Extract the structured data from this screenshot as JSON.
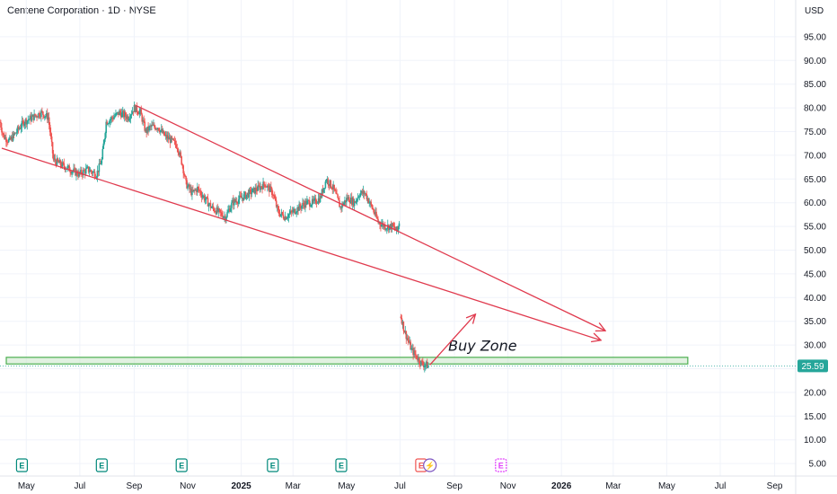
{
  "header": {
    "symbol_title": "Centene Corporation · 1D · NYSE",
    "currency": "USD"
  },
  "colors": {
    "up": "#26a69a",
    "down": "#ef5350",
    "trendline": "#e03a4e",
    "zone_border": "#4caf50",
    "zone_fill": "#c8e6c9",
    "price_tag": "#26a69a",
    "earnings": "#00897b",
    "earnings_upcoming": "#e040fb",
    "dividend": "#7e57c2"
  },
  "chart_data": {
    "type": "candlestick",
    "ylim": [
      0,
      100
    ],
    "y_ticks": [
      "95.00",
      "90.00",
      "85.00",
      "80.00",
      "75.00",
      "70.00",
      "65.00",
      "60.00",
      "55.00",
      "50.00",
      "45.00",
      "40.00",
      "35.00",
      "30.00",
      "25.00",
      "20.00",
      "15.00",
      "10.00",
      "5.00"
    ],
    "x_start": "2024-04-01",
    "x_end": "2026-09-25",
    "x_ticks": [
      {
        "label": "May",
        "date": "2024-05-01"
      },
      {
        "label": "Jul",
        "date": "2024-07-01"
      },
      {
        "label": "Sep",
        "date": "2024-09-01"
      },
      {
        "label": "Nov",
        "date": "2024-11-01"
      },
      {
        "label": "2025",
        "date": "2025-01-01",
        "bold": true
      },
      {
        "label": "Mar",
        "date": "2025-03-01"
      },
      {
        "label": "May",
        "date": "2025-05-01"
      },
      {
        "label": "Jul",
        "date": "2025-07-01"
      },
      {
        "label": "Sep",
        "date": "2025-09-01"
      },
      {
        "label": "Nov",
        "date": "2025-11-01"
      },
      {
        "label": "2026",
        "date": "2026-01-01",
        "bold": true
      },
      {
        "label": "Mar",
        "date": "2026-03-01"
      },
      {
        "label": "May",
        "date": "2026-05-01"
      },
      {
        "label": "Jul",
        "date": "2026-07-01"
      },
      {
        "label": "Sep",
        "date": "2026-09-01"
      }
    ],
    "price_path": [
      [
        "2024-04-01",
        77
      ],
      [
        "2024-04-05",
        74
      ],
      [
        "2024-04-12",
        73
      ],
      [
        "2024-04-20",
        75
      ],
      [
        "2024-04-28",
        77
      ],
      [
        "2024-05-08",
        78
      ],
      [
        "2024-05-18",
        79
      ],
      [
        "2024-05-26",
        78
      ],
      [
        "2024-06-01",
        69
      ],
      [
        "2024-06-10",
        68
      ],
      [
        "2024-06-20",
        67
      ],
      [
        "2024-06-30",
        66
      ],
      [
        "2024-07-10",
        67
      ],
      [
        "2024-07-20",
        66
      ],
      [
        "2024-07-26",
        69
      ],
      [
        "2024-07-31",
        77
      ],
      [
        "2024-08-08",
        78
      ],
      [
        "2024-08-15",
        79
      ],
      [
        "2024-08-25",
        78
      ],
      [
        "2024-09-01",
        80
      ],
      [
        "2024-09-08",
        79
      ],
      [
        "2024-09-14",
        75
      ],
      [
        "2024-09-20",
        76
      ],
      [
        "2024-09-28",
        76
      ],
      [
        "2024-10-06",
        74
      ],
      [
        "2024-10-14",
        73
      ],
      [
        "2024-10-20",
        72
      ],
      [
        "2024-10-26",
        68
      ],
      [
        "2024-10-30",
        64
      ],
      [
        "2024-11-06",
        62
      ],
      [
        "2024-11-12",
        63
      ],
      [
        "2024-11-20",
        61
      ],
      [
        "2024-11-28",
        59
      ],
      [
        "2024-12-06",
        58
      ],
      [
        "2024-12-14",
        57
      ],
      [
        "2024-12-22",
        60
      ],
      [
        "2025-01-01",
        61
      ],
      [
        "2025-01-10",
        62
      ],
      [
        "2025-01-20",
        63
      ],
      [
        "2025-01-28",
        64
      ],
      [
        "2025-02-06",
        62
      ],
      [
        "2025-02-12",
        58
      ],
      [
        "2025-02-20",
        57
      ],
      [
        "2025-02-28",
        58
      ],
      [
        "2025-03-08",
        59
      ],
      [
        "2025-03-16",
        60
      ],
      [
        "2025-03-24",
        60
      ],
      [
        "2025-04-01",
        61
      ],
      [
        "2025-04-08",
        65
      ],
      [
        "2025-04-16",
        63
      ],
      [
        "2025-04-24",
        59
      ],
      [
        "2025-05-02",
        61
      ],
      [
        "2025-05-10",
        60
      ],
      [
        "2025-05-16",
        62
      ],
      [
        "2025-05-22",
        62
      ],
      [
        "2025-05-30",
        59
      ],
      [
        "2025-06-06",
        56
      ],
      [
        "2025-06-14",
        55
      ],
      [
        "2025-06-22",
        55
      ],
      [
        "2025-06-28",
        54
      ],
      [
        "2025-07-01",
        57
      ]
    ],
    "post_gap_path": [
      [
        "2025-07-02",
        36
      ],
      [
        "2025-07-06",
        33
      ],
      [
        "2025-07-10",
        31
      ],
      [
        "2025-07-14",
        29
      ],
      [
        "2025-07-18",
        28
      ],
      [
        "2025-07-22",
        27
      ],
      [
        "2025-07-26",
        26
      ],
      [
        "2025-07-30",
        25.8
      ],
      [
        "2025-08-03",
        25.59
      ]
    ],
    "last_price": 25.59,
    "last_price_label": "25.59",
    "buy_zone": {
      "x1": "2024-04-01",
      "x2": "2026-05-25",
      "y_low": 26.0,
      "y_high": 27.4,
      "label": "Buy Zone",
      "label_x": "2025-08-25",
      "label_y": 28.8
    },
    "trendlines": [
      {
        "x1": "2024-04-03",
        "y1": 71.5,
        "x2": "2026-02-15",
        "y2": 31.0,
        "arrow": true
      },
      {
        "x1": "2024-09-03",
        "y1": 80.5,
        "x2": "2026-02-20",
        "y2": 33.0,
        "arrow": true
      },
      {
        "x1": "2025-08-04",
        "y1": 25.8,
        "x2": "2025-09-25",
        "y2": 36.5,
        "arrow": true
      }
    ],
    "events": [
      {
        "type": "earnings",
        "date": "2024-04-26",
        "label": "E"
      },
      {
        "type": "earnings",
        "date": "2024-07-26",
        "label": "E"
      },
      {
        "type": "earnings",
        "date": "2024-10-25",
        "label": "E"
      },
      {
        "type": "earnings",
        "date": "2025-02-06",
        "label": "E"
      },
      {
        "type": "earnings",
        "date": "2025-04-25",
        "label": "E"
      },
      {
        "type": "earnings_red",
        "date": "2025-07-25",
        "label": "E"
      },
      {
        "type": "dividend",
        "date": "2025-08-04",
        "label": "⚡"
      },
      {
        "type": "earnings_upcoming",
        "date": "2025-10-24",
        "label": "E"
      }
    ]
  }
}
